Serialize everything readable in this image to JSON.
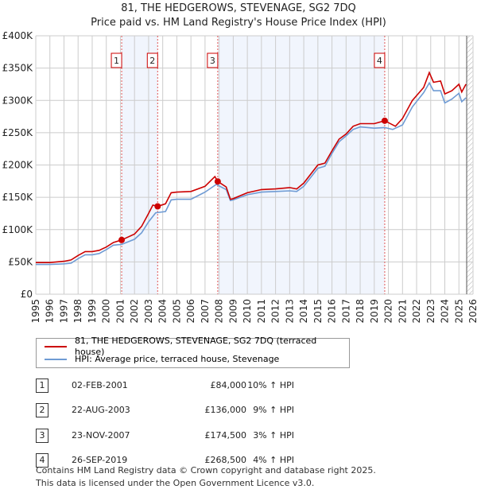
{
  "chart_data": {
    "type": "line",
    "title": "81, THE HEDGEROWS, STEVENAGE, SG2 7DQ",
    "subtitle": "Price paid vs. HM Land Registry's House Price Index (HPI)",
    "xlim": [
      1995,
      2026
    ],
    "ylim": [
      0,
      400000
    ],
    "x_ticks": [
      "1995",
      "1996",
      "1997",
      "1998",
      "1999",
      "2000",
      "2001",
      "2002",
      "2003",
      "2004",
      "2005",
      "2006",
      "2007",
      "2008",
      "2009",
      "2010",
      "2011",
      "2012",
      "2013",
      "2014",
      "2015",
      "2016",
      "2017",
      "2018",
      "2019",
      "2020",
      "2021",
      "2022",
      "2023",
      "2024",
      "2025",
      "2026"
    ],
    "y_ticks": [
      {
        "v": 0,
        "label": "£0"
      },
      {
        "v": 50000,
        "label": "£50K"
      },
      {
        "v": 100000,
        "label": "£100K"
      },
      {
        "v": 150000,
        "label": "£150K"
      },
      {
        "v": 200000,
        "label": "£200K"
      },
      {
        "v": 250000,
        "label": "£250K"
      },
      {
        "v": 300000,
        "label": "£300K"
      },
      {
        "v": 350000,
        "label": "£350K"
      },
      {
        "v": 400000,
        "label": "£400K"
      }
    ],
    "grid": true,
    "series": [
      {
        "name": "81, THE HEDGEROWS, STEVENAGE, SG2 7DQ (terraced house)",
        "color": "#cc0000",
        "x": [
          1995,
          1996,
          1997,
          1997.5,
          1998,
          1998.5,
          1999,
          1999.5,
          2000,
          2000.5,
          2001.09,
          2002,
          2002.5,
          2003,
          2003.3,
          2003.64,
          2004.2,
          2004.6,
          2005,
          2006,
          2007,
          2007.7,
          2007.9,
          2008.5,
          2008.8,
          2009,
          2010,
          2011,
          2012,
          2013,
          2013.5,
          2014,
          2015,
          2015.5,
          2016,
          2016.5,
          2017,
          2017.5,
          2018,
          2019,
          2019.74,
          2020.5,
          2021,
          2021.7,
          2022.5,
          2022.9,
          2023.2,
          2023.7,
          2024,
          2024.5,
          2025,
          2025.2,
          2025.5
        ],
        "y": [
          49000,
          49000,
          51000,
          53000,
          60000,
          66000,
          66000,
          68000,
          73000,
          80000,
          84000,
          93000,
          105000,
          125000,
          138000,
          136000,
          140000,
          157000,
          158000,
          159000,
          167000,
          182000,
          174500,
          166000,
          147000,
          148000,
          157000,
          162000,
          163000,
          165000,
          163000,
          172000,
          200000,
          203000,
          222000,
          240000,
          248000,
          260000,
          264000,
          264000,
          268500,
          260000,
          272000,
          300000,
          320000,
          343000,
          328000,
          330000,
          310000,
          315000,
          325000,
          313000,
          325000
        ]
      },
      {
        "name": "HPI: Average price, terraced house, Stevenage",
        "color": "#6f9bd4",
        "x": [
          1995,
          1996,
          1997,
          1997.5,
          1998,
          1998.5,
          1999,
          1999.5,
          2000,
          2000.5,
          2001.09,
          2002,
          2002.5,
          2003,
          2003.5,
          2004.2,
          2004.6,
          2005,
          2006,
          2007,
          2007.8,
          2008.5,
          2008.8,
          2009,
          2010,
          2011,
          2012,
          2013,
          2013.5,
          2014,
          2015,
          2015.5,
          2016,
          2016.5,
          2017,
          2017.5,
          2018,
          2019,
          2019.74,
          2020.3,
          2021,
          2021.7,
          2022.5,
          2022.9,
          2023.2,
          2023.7,
          2024,
          2024.5,
          2025,
          2025.2,
          2025.5
        ],
        "y": [
          46000,
          46000,
          47000,
          48000,
          55000,
          61000,
          61000,
          63000,
          69000,
          76000,
          77000,
          85000,
          95000,
          112000,
          126000,
          128000,
          146000,
          147000,
          147000,
          158000,
          170000,
          162000,
          145000,
          146000,
          154000,
          158000,
          159000,
          160000,
          159000,
          167000,
          195000,
          198000,
          218000,
          236000,
          245000,
          255000,
          259000,
          257000,
          258000,
          255000,
          262000,
          290000,
          312000,
          327000,
          315000,
          315000,
          296000,
          302000,
          311000,
          298000,
          304000
        ]
      }
    ],
    "sales": [
      {
        "label": "1",
        "x": 2001.09,
        "price": 84000,
        "date": "02-FEB-2001",
        "price_text": "£84,000",
        "hpi_text": "10% ↑ HPI"
      },
      {
        "label": "2",
        "x": 2003.64,
        "price": 136000,
        "date": "22-AUG-2003",
        "price_text": "£136,000",
        "hpi_text": "9% ↑ HPI"
      },
      {
        "label": "3",
        "x": 2007.9,
        "price": 174500,
        "date": "23-NOV-2007",
        "price_text": "£174,500",
        "hpi_text": "3% ↑ HPI"
      },
      {
        "label": "4",
        "x": 2019.74,
        "price": 268500,
        "date": "26-SEP-2019",
        "price_text": "£268,500",
        "hpi_text": "4% ↑ HPI"
      }
    ],
    "shaded_periods": [
      [
        2001.09,
        2003.64
      ],
      [
        2007.9,
        2019.74
      ]
    ],
    "future_hatch_from": 2025.55,
    "legend_placement": "bottom"
  },
  "footer": {
    "line1": "Contains HM Land Registry data © Crown copyright and database right 2025.",
    "line2": "This data is licensed under the Open Government Licence v3.0."
  }
}
